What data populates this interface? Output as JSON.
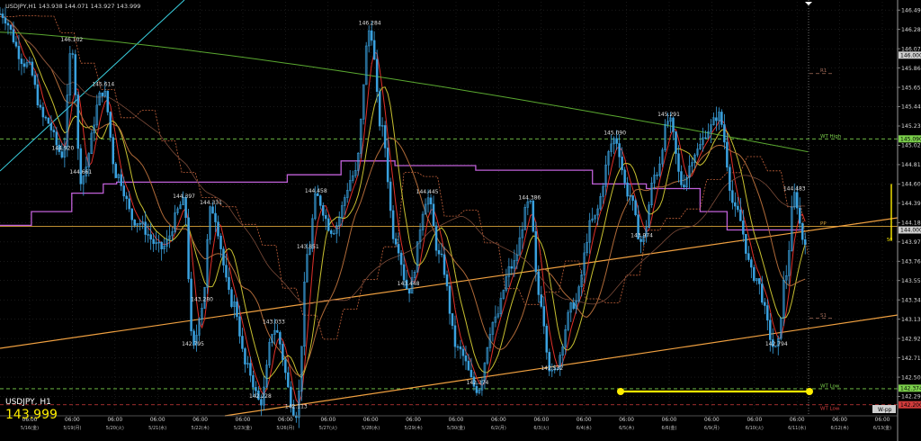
{
  "header": {
    "info": "USDJPY,H1  143.938 144.071 143.927 143.999"
  },
  "footer": {
    "symbol_tf": "USDJPY, H1",
    "last_price": "143.999"
  },
  "chart_data": {
    "type": "candlestick",
    "symbol": "USDJPY",
    "timeframe": "H1",
    "ylim": [
      142.08,
      146.58
    ],
    "y_ticks": [
      "146.490",
      "146.280",
      "146.070",
      "145.860",
      "145.650",
      "145.440",
      "145.230",
      "145.020",
      "144.810",
      "144.600",
      "144.390",
      "144.180",
      "143.970",
      "143.760",
      "143.550",
      "143.340",
      "143.130",
      "142.920",
      "142.710",
      "142.500",
      "142.290"
    ],
    "x_ticks": [
      {
        "day": "5/16(金)",
        "time": "06:00"
      },
      {
        "day": "5/19(月)",
        "time": "06:00"
      },
      {
        "day": "5/20(火)",
        "time": "06:00"
      },
      {
        "day": "5/21(水)",
        "time": "06:00"
      },
      {
        "day": "5/22(木)",
        "time": "06:00"
      },
      {
        "day": "5/23(金)",
        "time": "06:00"
      },
      {
        "day": "5/26(月)",
        "time": "06:00"
      },
      {
        "day": "5/27(火)",
        "time": "06:00"
      },
      {
        "day": "5/28(水)",
        "time": "06:00"
      },
      {
        "day": "5/29(木)",
        "time": "06:00"
      },
      {
        "day": "5/30(金)",
        "time": "06:00"
      },
      {
        "day": "6/2(月)",
        "time": "06:00"
      },
      {
        "day": "6/3(火)",
        "time": "06:00"
      },
      {
        "day": "6/4(水)",
        "time": "06:00"
      },
      {
        "day": "6/5(木)",
        "time": "06:00"
      },
      {
        "day": "6/6(金)",
        "time": "06:00"
      },
      {
        "day": "6/9(月)",
        "time": "06:00"
      },
      {
        "day": "6/10(火)",
        "time": "06:00"
      },
      {
        "day": "6/11(水)",
        "time": "06:00"
      },
      {
        "day": "6/12(木)",
        "time": "06:00"
      },
      {
        "day": "6/13(金)",
        "time": "06:00"
      }
    ],
    "swing_points": [
      {
        "t": 0.08,
        "price": 146.102,
        "label": "146.102"
      },
      {
        "t": 0.07,
        "price": 144.92,
        "label": "144.920"
      },
      {
        "t": 0.115,
        "price": 145.614,
        "label": "145.614"
      },
      {
        "t": 0.09,
        "price": 144.661,
        "label": "144.661"
      },
      {
        "t": 0.205,
        "price": 144.397,
        "label": "144.397"
      },
      {
        "t": 0.235,
        "price": 144.331,
        "label": "144.331"
      },
      {
        "t": 0.225,
        "price": 143.28,
        "label": "143.280"
      },
      {
        "t": 0.215,
        "price": 142.795,
        "label": "142.795"
      },
      {
        "t": 0.305,
        "price": 143.033,
        "label": "143.033"
      },
      {
        "t": 0.29,
        "price": 142.228,
        "label": "142.228"
      },
      {
        "t": 0.33,
        "price": 142.113,
        "label": "142.113"
      },
      {
        "t": 0.352,
        "price": 144.458,
        "label": "144.458"
      },
      {
        "t": 0.343,
        "price": 143.851,
        "label": "143.851"
      },
      {
        "t": 0.412,
        "price": 146.284,
        "label": "146.284"
      },
      {
        "t": 0.476,
        "price": 144.445,
        "label": "144.445"
      },
      {
        "t": 0.455,
        "price": 143.448,
        "label": "143.448"
      },
      {
        "t": 0.532,
        "price": 142.374,
        "label": "142.374"
      },
      {
        "t": 0.59,
        "price": 144.386,
        "label": "144.386"
      },
      {
        "t": 0.615,
        "price": 142.532,
        "label": "142.532"
      },
      {
        "t": 0.685,
        "price": 145.09,
        "label": "145.090"
      },
      {
        "t": 0.745,
        "price": 145.291,
        "label": "145.291"
      },
      {
        "t": 0.715,
        "price": 143.974,
        "label": "143.974"
      },
      {
        "t": 0.885,
        "price": 144.483,
        "label": "144.483"
      },
      {
        "t": 0.865,
        "price": 142.794,
        "label": "142.794"
      }
    ],
    "price_levels": [
      {
        "name": "R1",
        "price": 145.8,
        "color": "#a56d5a",
        "label": "R1"
      },
      {
        "name": "WT High",
        "price": 145.09,
        "color": "#7bd04b",
        "label": "WT High"
      },
      {
        "name": "PP",
        "price": 144.14,
        "color": "#d8a23a",
        "label": "PP"
      },
      {
        "name": "S1",
        "price": 143.14,
        "color": "#a56d5a",
        "label": "S1"
      },
      {
        "name": "WT Low",
        "price": 142.374,
        "color": "#7bd04b",
        "label": "WT Low"
      },
      {
        "name": "WT Low",
        "price": 142.2,
        "color": "#d23c3c",
        "label": "WT Low"
      }
    ],
    "right_badges": [
      {
        "price": 146.0,
        "text": "146.000",
        "bg": "#cfcfcf",
        "fg": "#000"
      },
      {
        "price": 145.09,
        "text": "145.090",
        "bg": "#7bd04b",
        "fg": "#000"
      },
      {
        "price": 144.1,
        "text": "144.000",
        "bg": "#cfcfcf",
        "fg": "#000"
      },
      {
        "price": 142.38,
        "text": "142.374",
        "bg": "#7bd04b",
        "fg": "#000"
      },
      {
        "price": 142.2,
        "text": "142.200",
        "bg": "#d23c3c",
        "fg": "#000"
      }
    ],
    "pp_tag": "W-pp",
    "range_marker_label": "50",
    "colors": {
      "candle": "#3aa2e0",
      "ma_fast": "#e0302a",
      "ma_mid": "#c8c030",
      "ma_slow": "#b06a38",
      "ma_long": "#5aa830",
      "ichimoku": "#c0603a",
      "envelope": "#c060d8",
      "trend": "#f0a040",
      "cyan": "#3ad0e0",
      "yellow": "#ffee00",
      "text": "#d8d8d8"
    }
  }
}
